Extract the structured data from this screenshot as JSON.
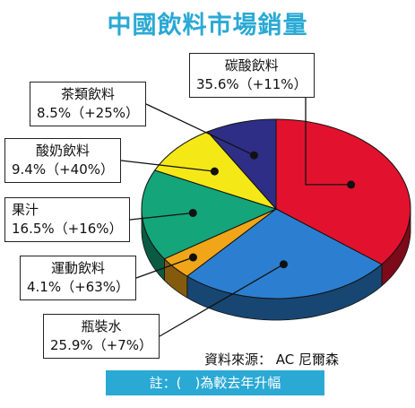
{
  "chart_data": {
    "type": "pie",
    "title": "中國飲料市場銷量",
    "slices": [
      {
        "name": "碳酸飲料",
        "value": 35.6,
        "growth": "+11%",
        "label_value": "35.6%",
        "label_growth": "（+11%）",
        "color": "#e2122e"
      },
      {
        "name": "瓶裝水",
        "value": 25.9,
        "growth": "+7%",
        "label_value": "25.9%",
        "label_growth": "（+7%）",
        "color": "#2c7fd0"
      },
      {
        "name": "運動飲料",
        "value": 4.1,
        "growth": "+63%",
        "label_value": "4.1%",
        "label_growth": "（+63%）",
        "color": "#f0a618"
      },
      {
        "name": "果汁",
        "value": 16.5,
        "growth": "+16%",
        "label_value": "16.5%",
        "label_growth": "（+16%）",
        "color": "#14a57a"
      },
      {
        "name": "酸奶飲料",
        "value": 9.4,
        "growth": "+40%",
        "label_value": "9.4%",
        "label_growth": "（+40%）",
        "color": "#f5e817"
      },
      {
        "name": "茶類飲料",
        "value": 8.5,
        "growth": "+25%",
        "label_value": "8.5%",
        "label_growth": "（+25%）",
        "color": "#2e2e86"
      }
    ],
    "source": "資料來源： AC 尼爾森",
    "note": "註：(　)為較去年升幅"
  }
}
